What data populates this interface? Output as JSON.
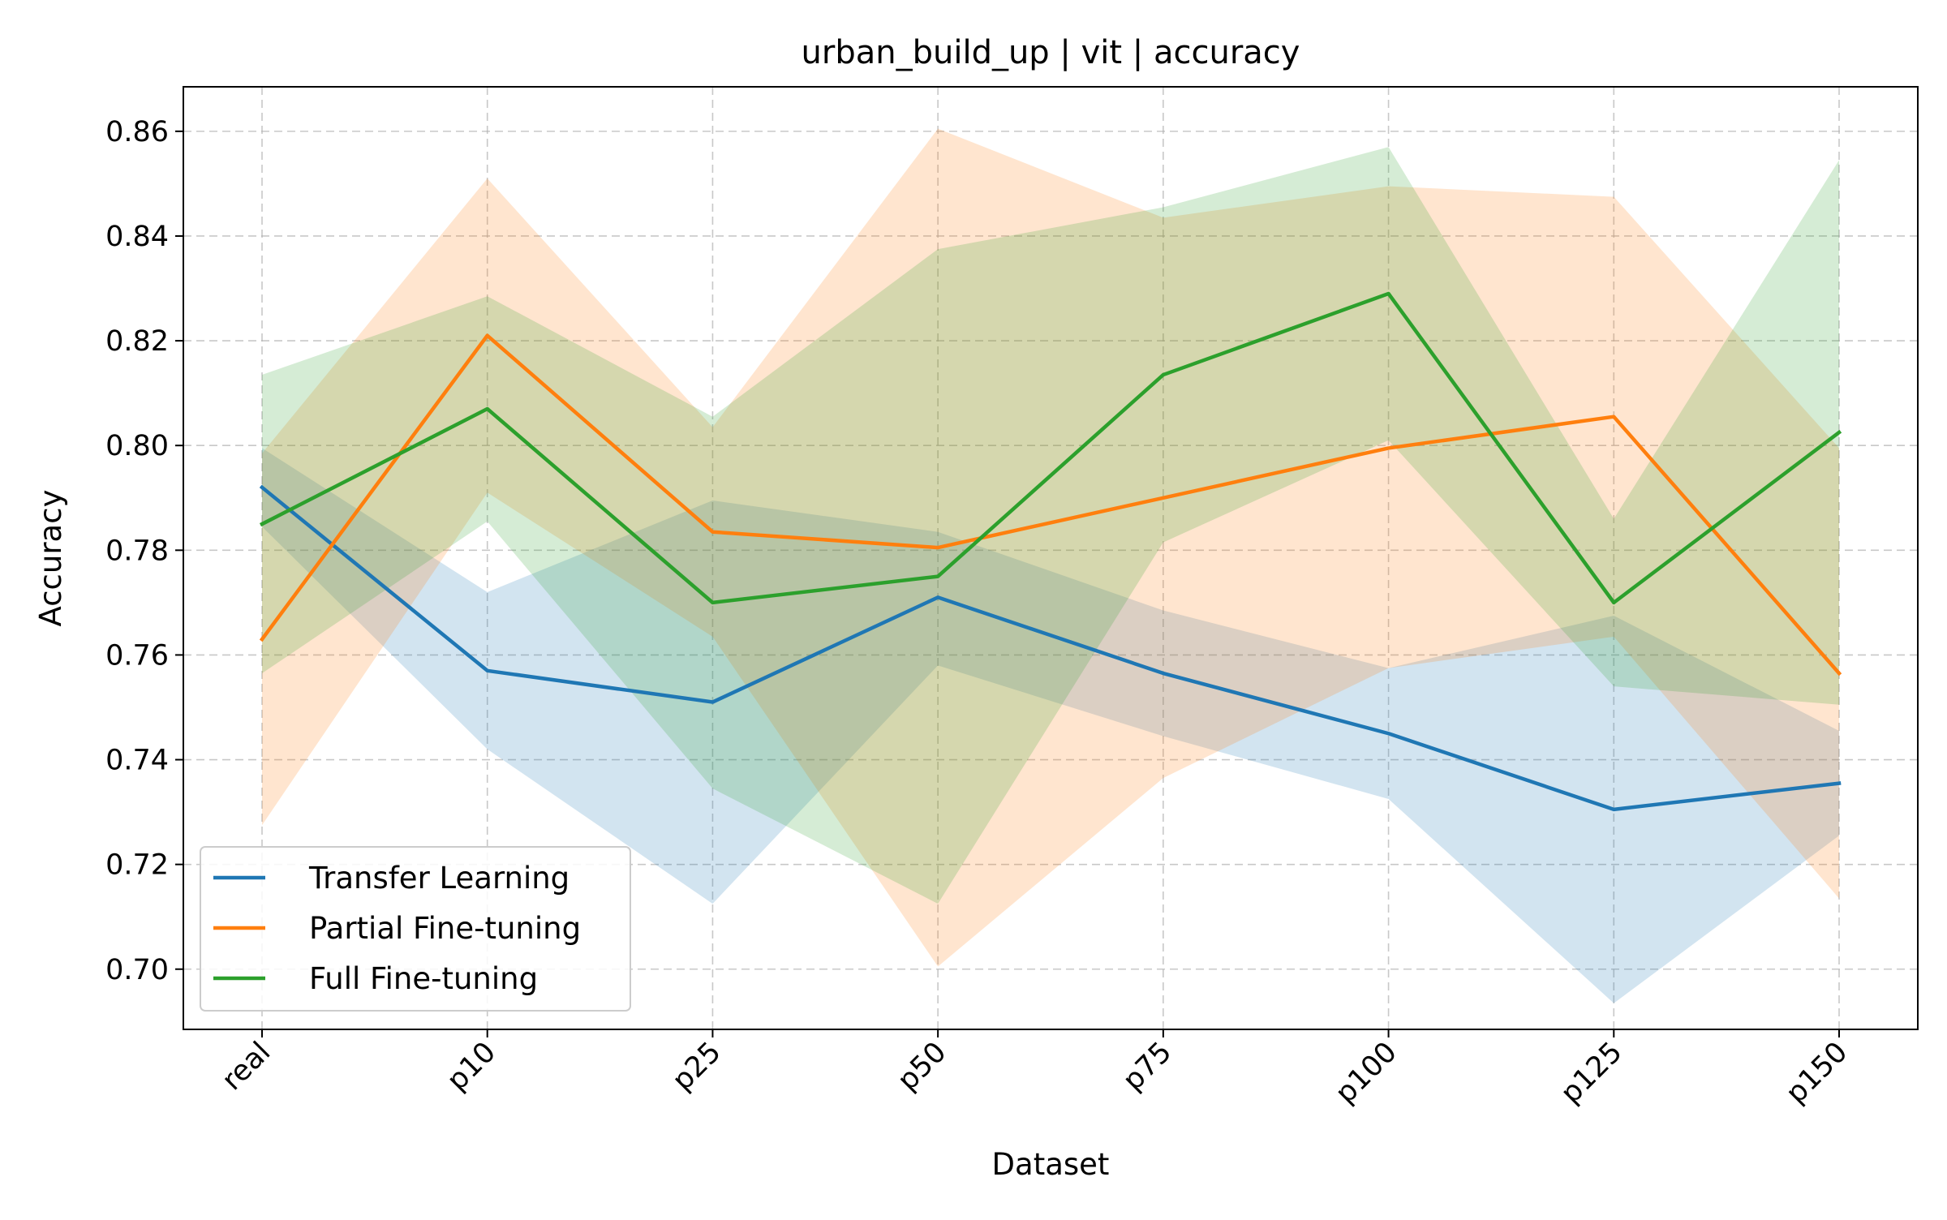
{
  "chart_data": {
    "type": "line",
    "title": "urban_build_up | vit | accuracy",
    "xlabel": "Dataset",
    "ylabel": "Accuracy",
    "categories": [
      "real",
      "p10",
      "p25",
      "p50",
      "p75",
      "p100",
      "p125",
      "p150"
    ],
    "ylim": [
      0.6885,
      0.8685
    ],
    "yticks": [
      0.7,
      0.72,
      0.74,
      0.76,
      0.78,
      0.8,
      0.82,
      0.84,
      0.86
    ],
    "ytick_labels": [
      "0.70",
      "0.72",
      "0.74",
      "0.76",
      "0.78",
      "0.80",
      "0.82",
      "0.84",
      "0.86"
    ],
    "grid": true,
    "legend_position": "lower-left",
    "band_opacity": 0.2,
    "series": [
      {
        "name": "Transfer Learning",
        "color": "#1f77b4",
        "values": [
          0.792,
          0.757,
          0.751,
          0.771,
          0.7565,
          0.745,
          0.7305,
          0.7355
        ],
        "lower": [
          0.7845,
          0.742,
          0.7125,
          0.758,
          0.7445,
          0.7325,
          0.6935,
          0.7255
        ],
        "upper": [
          0.7995,
          0.772,
          0.7895,
          0.7835,
          0.7685,
          0.7575,
          0.7675,
          0.7455
        ]
      },
      {
        "name": "Partial Fine-tuning",
        "color": "#ff7f0e",
        "values": [
          0.763,
          0.821,
          0.7835,
          0.7805,
          0.79,
          0.7995,
          0.8055,
          0.7565
        ],
        "lower": [
          0.7275,
          0.791,
          0.7635,
          0.7005,
          0.7365,
          0.7575,
          0.7635,
          0.7135
        ],
        "upper": [
          0.7985,
          0.851,
          0.8035,
          0.8605,
          0.8435,
          0.8495,
          0.8475,
          0.7995
        ]
      },
      {
        "name": "Full Fine-tuning",
        "color": "#2ca02c",
        "values": [
          0.785,
          0.807,
          0.77,
          0.775,
          0.8135,
          0.829,
          0.77,
          0.8025
        ],
        "lower": [
          0.7565,
          0.7855,
          0.7345,
          0.7125,
          0.7815,
          0.801,
          0.754,
          0.7505
        ],
        "upper": [
          0.8135,
          0.8285,
          0.8055,
          0.8375,
          0.8455,
          0.857,
          0.786,
          0.8545
        ]
      }
    ]
  }
}
